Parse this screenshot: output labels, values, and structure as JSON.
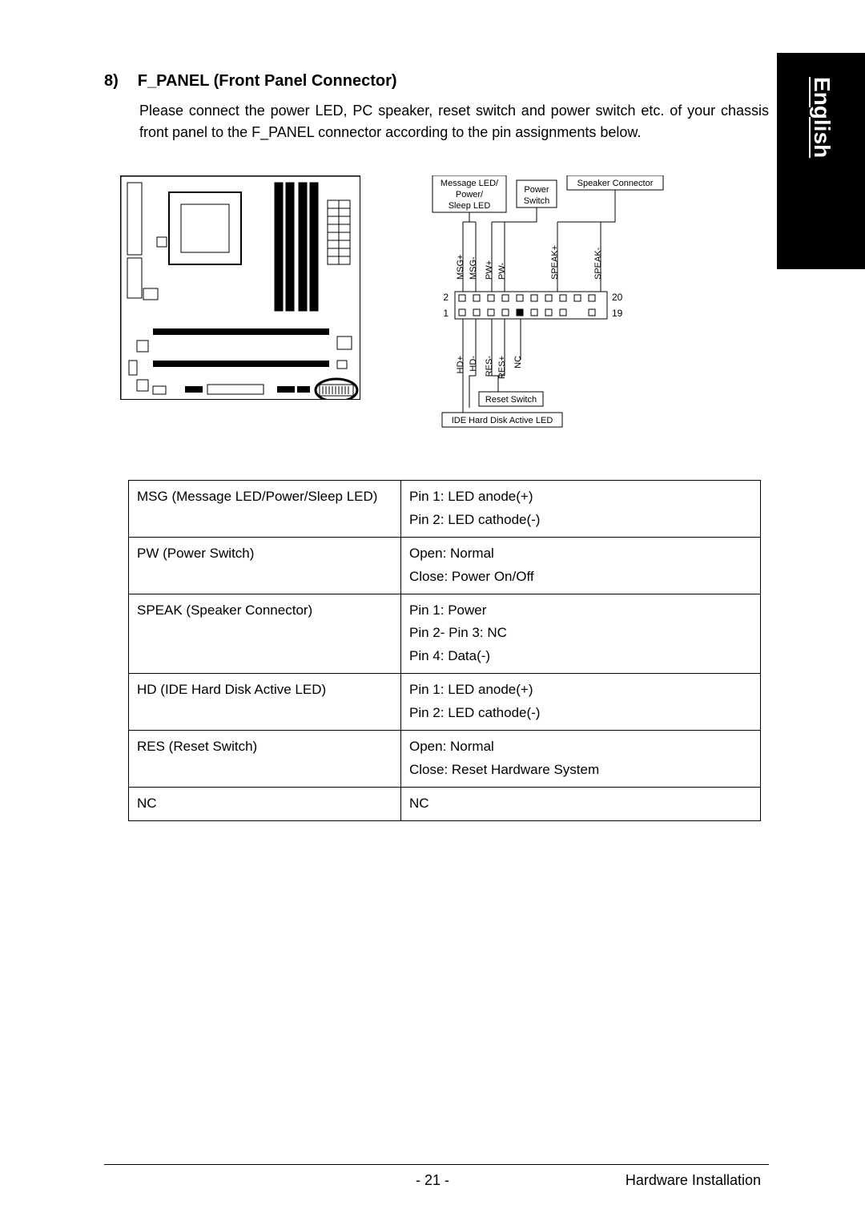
{
  "sideTab": "English",
  "section": {
    "num": "8)",
    "title": "F_PANEL (Front Panel Connector)"
  },
  "desc": "Please connect the power LED, PC speaker, reset switch and power switch etc. of your chassis front panel to the F_PANEL connector according to the pin assignments below.",
  "diagram": {
    "topBoxes": {
      "msg": [
        "Message LED/",
        "Power/",
        "Sleep LED"
      ],
      "pw": [
        "Power",
        "Switch"
      ],
      "speak": "Speaker Connector"
    },
    "bottomBoxes": {
      "reset": "Reset Switch",
      "hd": "IDE Hard Disk Active LED"
    },
    "topPins": [
      "MSG+",
      "MSG-",
      "PW+",
      "PW-",
      "SPEAK+",
      "SPEAK-"
    ],
    "bottomPins": [
      "HD+",
      "HD-",
      "RES-",
      "RES+",
      "NC"
    ],
    "rowNums": {
      "tl": "2",
      "bl": "1",
      "tr": "20",
      "br": "19"
    }
  },
  "table": [
    {
      "name": "MSG (Message LED/Power/Sleep LED)",
      "desc": "Pin 1: LED anode(+)<br>Pin 2: LED cathode(-)"
    },
    {
      "name": "PW (Power Switch)",
      "desc": "Open: Normal<br>Close: Power On/Off"
    },
    {
      "name": "SPEAK (Speaker Connector)",
      "desc": "Pin 1: Power<br>Pin 2- Pin 3: NC<br>Pin 4: Data(-)"
    },
    {
      "name": "HD (IDE Hard Disk Active LED)",
      "desc": "Pin 1: LED anode(+)<br>Pin 2: LED cathode(-)"
    },
    {
      "name": "RES (Reset Switch)",
      "desc": "Open: Normal<br>Close: Reset Hardware System"
    },
    {
      "name": "NC",
      "desc": "NC"
    }
  ],
  "footer": {
    "page": "- 21 -",
    "section": "Hardware Installation"
  }
}
